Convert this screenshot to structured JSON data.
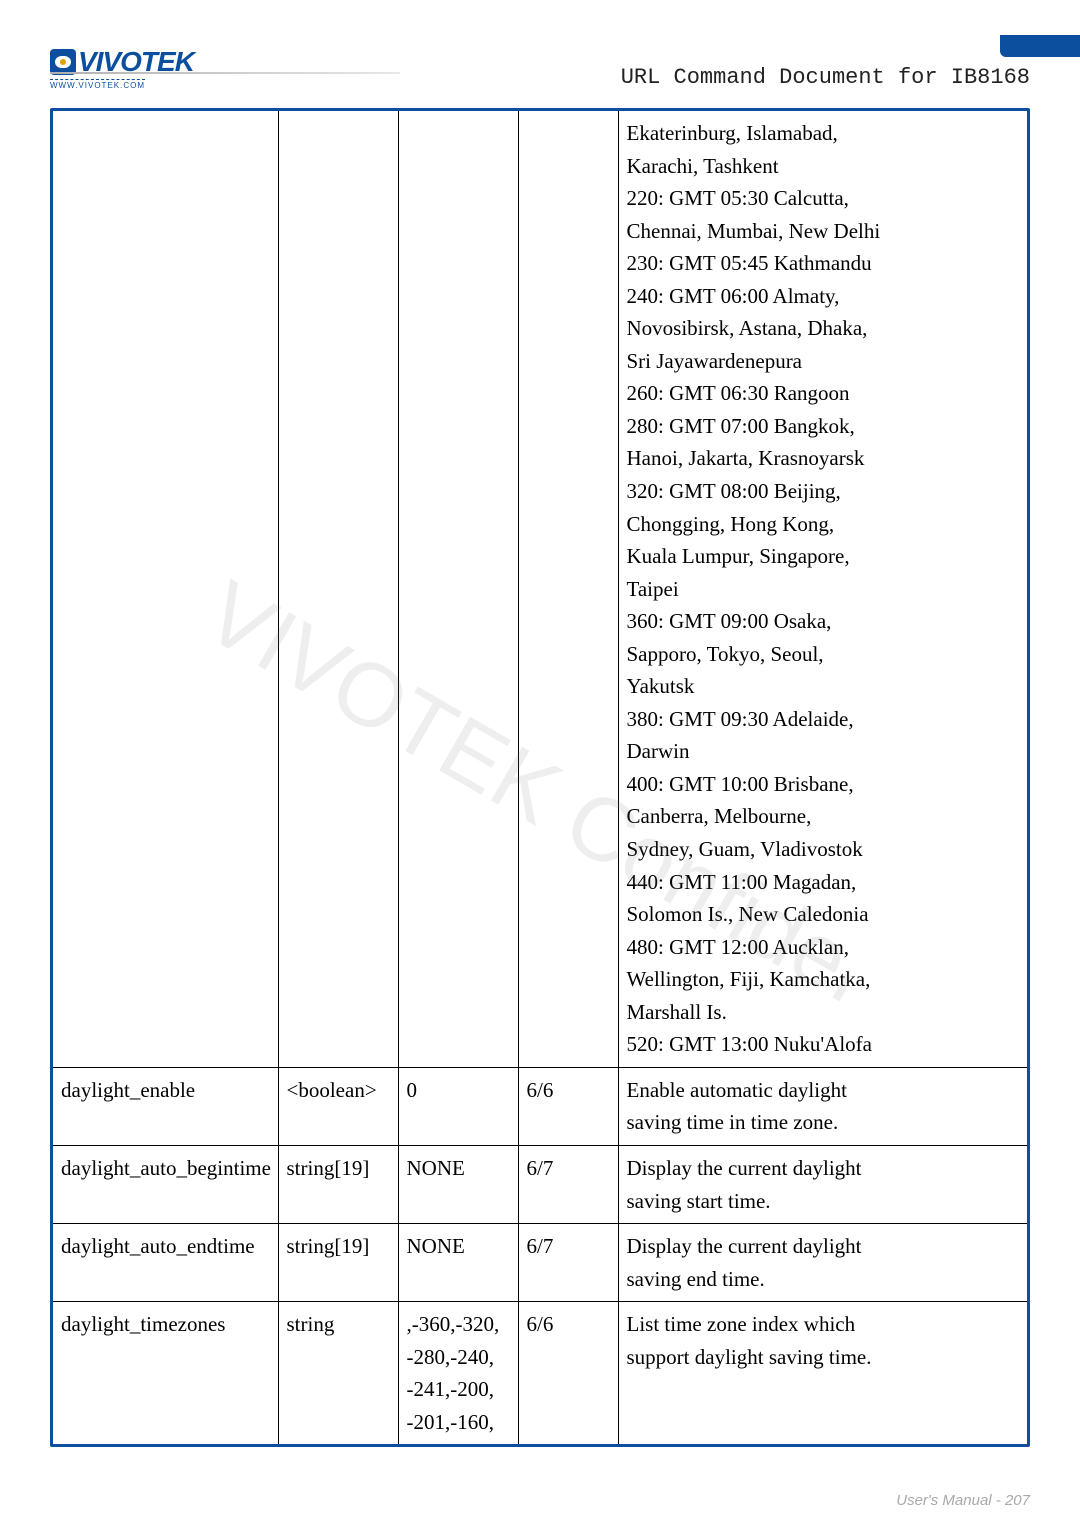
{
  "header": {
    "logo_text": "VIVOTEK",
    "logo_sub": "WWW.VIVOTEK.COM",
    "doc_title": "URL Command Document for IB8168"
  },
  "rows": [
    {
      "name": "",
      "type": "",
      "default": "",
      "sec": "",
      "desc": [
        "Ekaterinburg, Islamabad,",
        "Karachi, Tashkent",
        "220: GMT 05:30 Calcutta,",
        "Chennai, Mumbai, New Delhi",
        "230: GMT 05:45 Kathmandu",
        "240: GMT 06:00 Almaty,",
        "Novosibirsk, Astana, Dhaka,",
        "Sri Jayawardenepura",
        "260: GMT 06:30 Rangoon",
        "280: GMT 07:00 Bangkok,",
        "Hanoi, Jakarta, Krasnoyarsk",
        "320: GMT 08:00 Beijing,",
        "Chongging, Hong Kong,",
        "Kuala Lumpur, Singapore,",
        "Taipei",
        "360: GMT 09:00 Osaka,",
        "Sapporo, Tokyo, Seoul,",
        "Yakutsk",
        "380: GMT 09:30 Adelaide,",
        "Darwin",
        "400: GMT 10:00 Brisbane,",
        "Canberra, Melbourne,",
        "Sydney, Guam, Vladivostok",
        "440: GMT 11:00 Magadan,",
        "Solomon Is., New Caledonia",
        "480: GMT 12:00 Aucklan,",
        "Wellington, Fiji, Kamchatka,",
        "Marshall Is.",
        "520: GMT 13:00 Nuku'Alofa"
      ]
    },
    {
      "name": "daylight_enable",
      "type": "<boolean>",
      "default": "0",
      "sec": "6/6",
      "desc": [
        "Enable automatic daylight",
        "saving time in time zone."
      ]
    },
    {
      "name": "daylight_auto_begintime",
      "type": "string[19]",
      "default": "NONE",
      "sec": "6/7",
      "desc": [
        "Display the current daylight",
        "saving start time."
      ]
    },
    {
      "name": "daylight_auto_endtime",
      "type": "string[19]",
      "default": "NONE",
      "sec": "6/7",
      "desc": [
        "Display the current daylight",
        "saving end time."
      ]
    },
    {
      "name": "daylight_timezones",
      "type": "string",
      "default_lines": [
        ",-360,-320,",
        "-280,-240,",
        "-241,-200,",
        "-201,-160,"
      ],
      "sec": "6/6",
      "desc": [
        "List time zone index which",
        "support daylight saving time."
      ]
    }
  ],
  "footer": "User's Manual - 207",
  "colors": {
    "border": "#0b4f9e",
    "text": "#000000",
    "footer": "#a9a9a9",
    "watermark": "#d0d0d0"
  }
}
